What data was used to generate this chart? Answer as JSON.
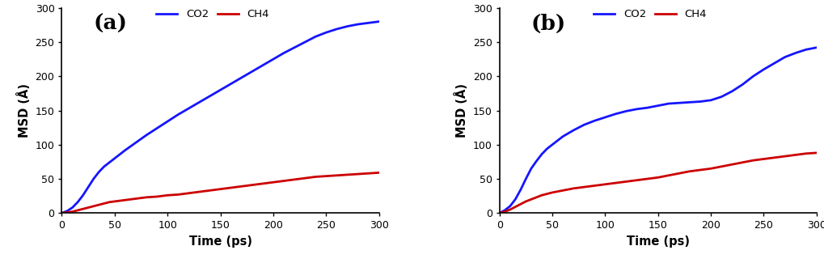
{
  "panel_a_label": "(a)",
  "panel_b_label": "(b)",
  "xlabel": "Time (ps)",
  "ylabel": "MSD (Å)",
  "xlim": [
    0,
    300
  ],
  "ylim": [
    0,
    300
  ],
  "xticks": [
    0,
    50,
    100,
    150,
    200,
    250,
    300
  ],
  "yticks": [
    0,
    50,
    100,
    150,
    200,
    250,
    300
  ],
  "co2_color": "#1515ff",
  "ch4_color": "#cc0000",
  "linewidth": 2.0,
  "background_color": "#ffffff",
  "panel_a_co2_x": [
    0,
    5,
    10,
    15,
    20,
    25,
    30,
    35,
    40,
    45,
    50,
    60,
    70,
    80,
    90,
    100,
    110,
    120,
    130,
    140,
    150,
    160,
    170,
    180,
    190,
    200,
    210,
    220,
    230,
    240,
    250,
    260,
    270,
    280,
    290,
    300
  ],
  "panel_a_co2_y": [
    0,
    3,
    8,
    16,
    26,
    38,
    50,
    60,
    68,
    74,
    80,
    92,
    103,
    114,
    124,
    134,
    144,
    153,
    162,
    171,
    180,
    189,
    198,
    207,
    216,
    225,
    234,
    242,
    250,
    258,
    264,
    269,
    273,
    276,
    278,
    280
  ],
  "panel_a_ch4_x": [
    0,
    5,
    10,
    15,
    20,
    25,
    30,
    35,
    40,
    45,
    50,
    60,
    70,
    80,
    90,
    100,
    110,
    120,
    130,
    140,
    150,
    160,
    170,
    180,
    190,
    200,
    210,
    220,
    230,
    240,
    250,
    260,
    270,
    280,
    290,
    300
  ],
  "panel_a_ch4_y": [
    0,
    1,
    2,
    4,
    6,
    8,
    10,
    12,
    14,
    16,
    17,
    19,
    21,
    23,
    24,
    26,
    27,
    29,
    31,
    33,
    35,
    37,
    39,
    41,
    43,
    45,
    47,
    49,
    51,
    53,
    54,
    55,
    56,
    57,
    58,
    59
  ],
  "panel_b_co2_x": [
    0,
    5,
    10,
    15,
    20,
    25,
    30,
    35,
    40,
    45,
    50,
    60,
    70,
    80,
    90,
    100,
    110,
    120,
    130,
    140,
    150,
    160,
    170,
    180,
    190,
    200,
    210,
    220,
    230,
    240,
    250,
    260,
    270,
    280,
    290,
    300
  ],
  "panel_b_co2_y": [
    0,
    4,
    10,
    20,
    34,
    50,
    65,
    76,
    86,
    94,
    100,
    112,
    121,
    129,
    135,
    140,
    145,
    149,
    152,
    154,
    157,
    160,
    161,
    162,
    163,
    165,
    170,
    178,
    188,
    200,
    210,
    219,
    228,
    234,
    239,
    242
  ],
  "panel_b_ch4_x": [
    0,
    5,
    10,
    15,
    20,
    25,
    30,
    35,
    40,
    45,
    50,
    60,
    70,
    80,
    90,
    100,
    110,
    120,
    130,
    140,
    150,
    160,
    170,
    180,
    190,
    200,
    210,
    220,
    230,
    240,
    250,
    260,
    270,
    280,
    290,
    300
  ],
  "panel_b_ch4_y": [
    0,
    2,
    5,
    9,
    13,
    17,
    20,
    23,
    26,
    28,
    30,
    33,
    36,
    38,
    40,
    42,
    44,
    46,
    48,
    50,
    52,
    55,
    58,
    61,
    63,
    65,
    68,
    71,
    74,
    77,
    79,
    81,
    83,
    85,
    87,
    88
  ]
}
